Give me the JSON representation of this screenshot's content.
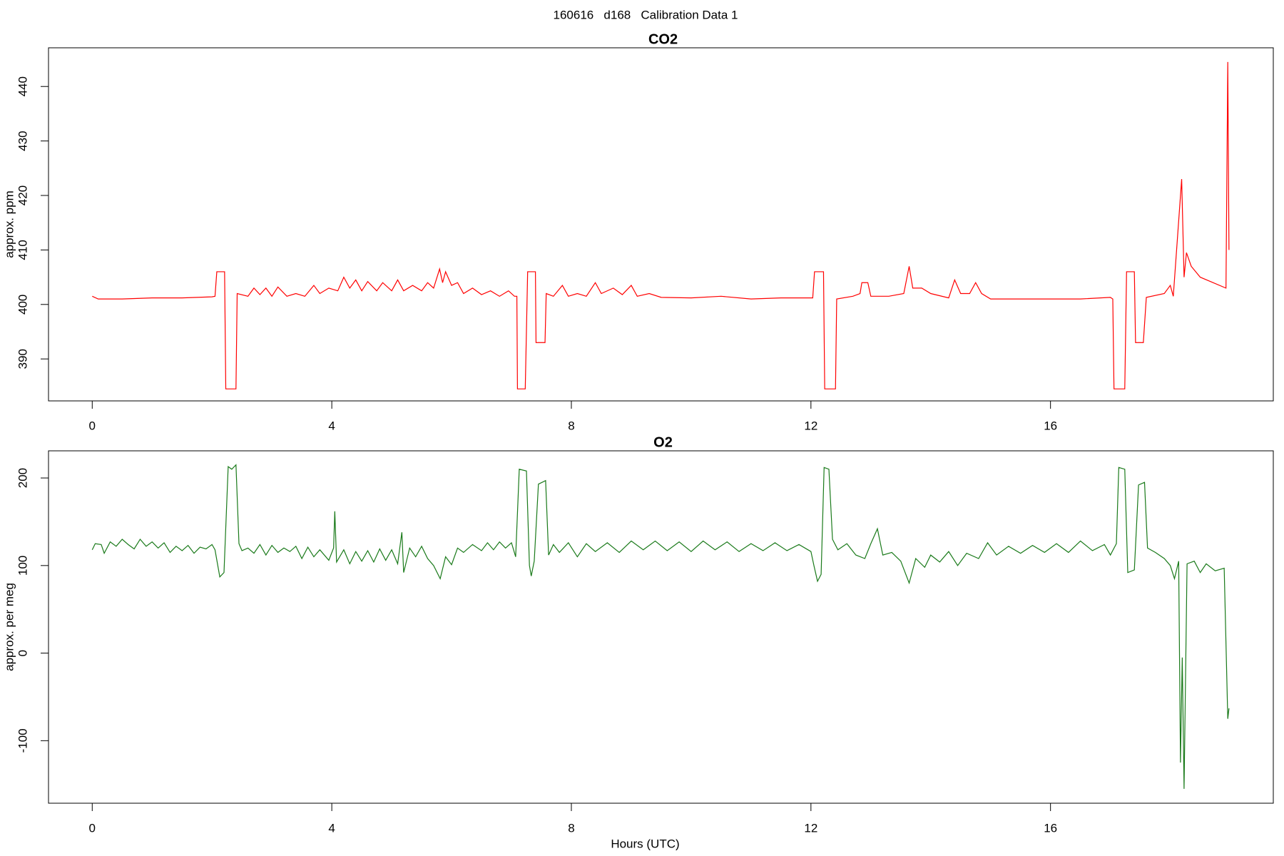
{
  "title": "160616   d168   Calibration Data 1",
  "chart_data": [
    {
      "type": "line",
      "title": "CO2",
      "ylabel": "approx. ppm",
      "color": "#ff0000",
      "xlim": [
        -0.73,
        19.72
      ],
      "xticks": [
        0,
        4,
        8,
        12,
        16
      ],
      "ylim": [
        382.3,
        447.1
      ],
      "yticks": [
        390,
        400,
        410,
        420,
        430,
        440
      ],
      "x": [
        0,
        0.1,
        0.5,
        1,
        1.5,
        2.0,
        2.05,
        2.08,
        2.21,
        2.23,
        2.4,
        2.42,
        2.6,
        2.7,
        2.8,
        2.9,
        3.0,
        3.1,
        3.25,
        3.4,
        3.55,
        3.7,
        3.8,
        3.95,
        4.1,
        4.2,
        4.3,
        4.4,
        4.5,
        4.6,
        4.75,
        4.85,
        5.0,
        5.1,
        5.2,
        5.35,
        5.5,
        5.6,
        5.7,
        5.8,
        5.85,
        5.9,
        6.0,
        6.1,
        6.2,
        6.35,
        6.5,
        6.65,
        6.8,
        6.95,
        7.05,
        7.09,
        7.1,
        7.23,
        7.27,
        7.4,
        7.41,
        7.56,
        7.58,
        7.7,
        7.85,
        7.95,
        8.1,
        8.25,
        8.4,
        8.5,
        8.7,
        8.85,
        9.0,
        9.1,
        9.3,
        9.5,
        10,
        10.5,
        11,
        11.5,
        12.0,
        12.03,
        12.06,
        12.21,
        12.23,
        12.41,
        12.43,
        12.7,
        12.82,
        12.85,
        12.95,
        13.0,
        13.3,
        13.55,
        13.64,
        13.7,
        13.85,
        14.0,
        14.3,
        14.4,
        14.5,
        14.65,
        14.75,
        14.85,
        15,
        15.5,
        16,
        16.5,
        17.0,
        17.04,
        17.06,
        17.24,
        17.27,
        17.4,
        17.42,
        17.55,
        17.6,
        17.9,
        18.0,
        18.05,
        18.19,
        18.23,
        18.27,
        18.35,
        18.5,
        18.93,
        18.96,
        18.98
      ],
      "values": [
        401.5,
        401,
        401,
        401.2,
        401.2,
        401.4,
        401.5,
        406,
        406,
        384.5,
        384.5,
        402,
        401.5,
        403,
        401.8,
        403,
        401.5,
        403.2,
        401.5,
        402,
        401.5,
        403.5,
        402,
        403,
        402.5,
        405,
        403,
        404.5,
        402.5,
        404.2,
        402.5,
        404,
        402.5,
        404.5,
        402.5,
        403.5,
        402.5,
        404,
        403,
        406.5,
        404,
        406,
        403.5,
        404,
        402,
        403,
        401.8,
        402.5,
        401.5,
        402.5,
        401.5,
        401.5,
        384.5,
        384.5,
        406,
        406,
        393,
        393,
        402,
        401.5,
        403.5,
        401.5,
        402,
        401.5,
        404,
        402,
        403,
        401.8,
        403.5,
        401.5,
        402,
        401.3,
        401.2,
        401.5,
        401,
        401.2,
        401.2,
        401.2,
        406,
        406,
        384.5,
        384.5,
        401,
        401.5,
        402,
        404,
        404,
        401.5,
        401.5,
        402,
        407,
        403,
        403,
        402,
        401.2,
        404.5,
        402,
        402,
        404,
        402,
        401,
        401,
        401,
        401,
        401.3,
        401,
        384.5,
        384.5,
        406,
        406,
        393,
        393,
        401.3,
        402,
        403.5,
        401.5,
        423,
        405,
        409.5,
        407,
        405,
        403,
        444.5,
        410
      ]
    },
    {
      "type": "line",
      "title": "O2",
      "ylabel": "approx. per meg",
      "xlabel": "Hours (UTC)",
      "color": "#1a7a1a",
      "xlim": [
        -0.73,
        19.72
      ],
      "xticks": [
        0,
        4,
        8,
        12,
        16
      ],
      "ylim": [
        -171.4,
        231
      ],
      "yticks": [
        -100,
        0,
        100,
        200
      ],
      "x": [
        0,
        0.05,
        0.15,
        0.2,
        0.3,
        0.4,
        0.5,
        0.6,
        0.7,
        0.8,
        0.9,
        1.0,
        1.1,
        1.2,
        1.3,
        1.4,
        1.5,
        1.6,
        1.7,
        1.8,
        1.9,
        2.0,
        2.05,
        2.13,
        2.2,
        2.27,
        2.33,
        2.4,
        2.45,
        2.5,
        2.6,
        2.7,
        2.8,
        2.9,
        3.0,
        3.1,
        3.2,
        3.3,
        3.4,
        3.5,
        3.6,
        3.7,
        3.8,
        3.95,
        4.03,
        4.05,
        4.08,
        4.2,
        4.3,
        4.4,
        4.5,
        4.6,
        4.7,
        4.8,
        4.9,
        5.0,
        5.1,
        5.17,
        5.2,
        5.3,
        5.4,
        5.5,
        5.6,
        5.7,
        5.81,
        5.9,
        6.0,
        6.1,
        6.2,
        6.35,
        6.5,
        6.6,
        6.7,
        6.8,
        6.9,
        7.0,
        7.07,
        7.13,
        7.25,
        7.3,
        7.33,
        7.38,
        7.45,
        7.57,
        7.62,
        7.7,
        7.8,
        7.95,
        8.1,
        8.25,
        8.4,
        8.6,
        8.8,
        9.0,
        9.2,
        9.4,
        9.6,
        9.8,
        10.0,
        10.2,
        10.4,
        10.6,
        10.8,
        11.0,
        11.2,
        11.4,
        11.6,
        11.8,
        12.0,
        12.05,
        12.11,
        12.17,
        12.22,
        12.3,
        12.36,
        12.45,
        12.6,
        12.75,
        12.9,
        13.0,
        13.11,
        13.2,
        13.35,
        13.5,
        13.64,
        13.75,
        13.9,
        14.0,
        14.15,
        14.3,
        14.45,
        14.6,
        14.8,
        14.95,
        15.1,
        15.3,
        15.5,
        15.7,
        15.9,
        16.1,
        16.3,
        16.5,
        16.7,
        16.9,
        17.0,
        17.1,
        17.14,
        17.24,
        17.29,
        17.4,
        17.47,
        17.57,
        17.62,
        17.75,
        17.9,
        18.0,
        18.07,
        18.14,
        18.17,
        18.2,
        18.23,
        18.28,
        18.4,
        18.5,
        18.6,
        18.75,
        18.9,
        18.96,
        18.98
      ],
      "values": [
        118,
        125,
        124,
        114,
        127,
        122,
        130,
        124,
        119,
        130,
        122,
        127,
        120,
        126,
        115,
        122,
        117,
        123,
        114,
        121,
        119,
        124,
        118,
        87,
        92,
        213,
        210,
        215,
        125,
        117,
        120,
        114,
        124,
        112,
        123,
        115,
        120,
        116,
        122,
        108,
        121,
        110,
        118,
        106,
        120,
        162,
        104,
        118,
        102,
        116,
        105,
        117,
        104,
        119,
        106,
        118,
        102,
        138,
        92,
        120,
        110,
        122,
        108,
        100,
        85,
        110,
        101,
        120,
        115,
        124,
        117,
        126,
        118,
        127,
        120,
        126,
        110,
        210,
        208,
        100,
        88,
        105,
        193,
        197,
        112,
        124,
        115,
        126,
        110,
        125,
        116,
        126,
        115,
        128,
        118,
        128,
        117,
        127,
        116,
        128,
        118,
        127,
        116,
        125,
        117,
        126,
        117,
        124,
        116,
        100,
        82,
        90,
        212,
        210,
        130,
        118,
        125,
        112,
        108,
        125,
        142,
        112,
        115,
        105,
        80,
        108,
        98,
        112,
        104,
        116,
        100,
        114,
        108,
        126,
        112,
        122,
        114,
        123,
        115,
        125,
        115,
        128,
        117,
        124,
        112,
        125,
        212,
        210,
        92,
        95,
        192,
        195,
        120,
        115,
        108,
        100,
        85,
        105,
        -125,
        -5,
        -155,
        102,
        105,
        92,
        102,
        94,
        97,
        -75,
        -63
      ]
    }
  ]
}
